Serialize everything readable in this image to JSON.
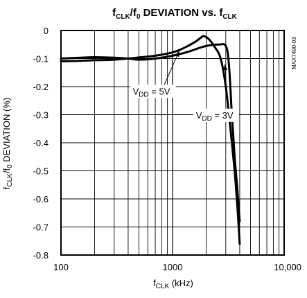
{
  "chart_data": {
    "type": "line",
    "title": {
      "f": "f",
      "sub1": "CLK",
      "mid": "/f",
      "sub2": "0",
      "tail": " DEVIATION vs. f",
      "sub3": "CLK"
    },
    "xlabel": {
      "f": "f",
      "sub": "CLK",
      "tail": " (kHz)"
    },
    "ylabel": {
      "f": "f",
      "sub1": "CLK",
      "mid": "/f",
      "sub2": "0",
      "tail": " DEVIATION (%)"
    },
    "x_scale": "log",
    "xlim": [
      100,
      10000
    ],
    "ylim": [
      -0.8,
      0
    ],
    "x_ticks": [
      {
        "value": 100,
        "label": "100"
      },
      {
        "value": 1000,
        "label": "1000"
      },
      {
        "value": 10000,
        "label": "10,000"
      }
    ],
    "y_ticks": [
      {
        "value": 0,
        "label": "0"
      },
      {
        "value": -0.1,
        "label": "-0.1"
      },
      {
        "value": -0.2,
        "label": "-0.2"
      },
      {
        "value": -0.3,
        "label": "-0.3"
      },
      {
        "value": -0.4,
        "label": "-0.4"
      },
      {
        "value": -0.5,
        "label": "-0.5"
      },
      {
        "value": -0.6,
        "label": "-0.6"
      },
      {
        "value": -0.7,
        "label": "-0.7"
      },
      {
        "value": -0.8,
        "label": "-0.8"
      }
    ],
    "grid": true,
    "legend": "none",
    "series": [
      {
        "name": "VDD = 5V",
        "label": {
          "v": "V",
          "sub": "DD",
          "tail": " = 5V"
        },
        "points": [
          [
            100,
            -0.11
          ],
          [
            150,
            -0.108
          ],
          [
            200,
            -0.106
          ],
          [
            300,
            -0.104
          ],
          [
            400,
            -0.1
          ],
          [
            500,
            -0.096
          ],
          [
            700,
            -0.09
          ],
          [
            1000,
            -0.078
          ],
          [
            1300,
            -0.06
          ],
          [
            1600,
            -0.04
          ],
          [
            1800,
            -0.025
          ],
          [
            1900,
            -0.02
          ],
          [
            2100,
            -0.03
          ],
          [
            2400,
            -0.06
          ],
          [
            2700,
            -0.1
          ],
          [
            3000,
            -0.2
          ],
          [
            3300,
            -0.35
          ],
          [
            3600,
            -0.5
          ],
          [
            3800,
            -0.62
          ],
          [
            4000,
            -0.76
          ]
        ]
      },
      {
        "name": "VDD = 3V",
        "label": {
          "v": "V",
          "sub": "DD",
          "tail": " = 3V"
        },
        "points": [
          [
            100,
            -0.1
          ],
          [
            150,
            -0.097
          ],
          [
            200,
            -0.095
          ],
          [
            300,
            -0.097
          ],
          [
            400,
            -0.1
          ],
          [
            500,
            -0.104
          ],
          [
            700,
            -0.1
          ],
          [
            1000,
            -0.09
          ],
          [
            1400,
            -0.075
          ],
          [
            1800,
            -0.06
          ],
          [
            2200,
            -0.052
          ],
          [
            2600,
            -0.05
          ],
          [
            3000,
            -0.055
          ],
          [
            3200,
            -0.12
          ],
          [
            3400,
            -0.3
          ],
          [
            3600,
            -0.45
          ],
          [
            3800,
            -0.56
          ],
          [
            4000,
            -0.68
          ]
        ]
      }
    ],
    "annotations": [
      {
        "series": 0,
        "text_x": 440,
        "text_y": -0.228,
        "arrow_to_x": 1150,
        "arrow_to_y": -0.072
      },
      {
        "series": 1,
        "text_x": 1620,
        "text_y": -0.313,
        "arrow_to_x": 2950,
        "arrow_to_y": -0.12
      }
    ],
    "part_code": "MAX7490-03",
    "color": "#000000"
  }
}
